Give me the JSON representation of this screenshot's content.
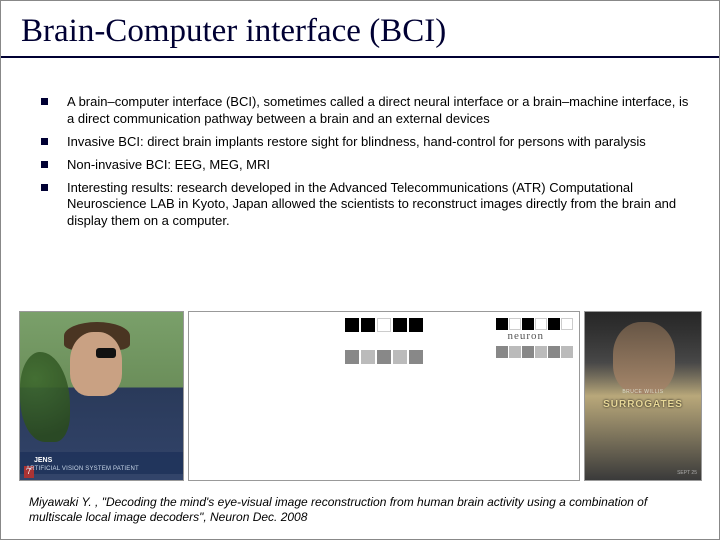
{
  "title": "Brain-Computer interface (BCI)",
  "bullets": [
    "A brain–computer interface (BCI), sometimes called a direct neural interface or a brain–machine interface, is a direct communication pathway between a brain and an external devices",
    "Invasive BCI: direct brain implants restore sight for blindness, hand-control for persons with paralysis",
    "Non-invasive BCI: EEG, MEG, MRI",
    "Interesting results: research developed in the Advanced Telecommunications (ATR) Computational Neuroscience LAB in Kyoto, Japan allowed the scientists to reconstruct images directly from the brain and display them on a computer."
  ],
  "figure": {
    "panel1": {
      "description": "artificial-vision-patient-photo",
      "name_tag": "JENS",
      "lower_caption": "ARTIFICIAL VISION SYSTEM PATIENT",
      "channel_num": "7"
    },
    "panel2": {
      "description": "stimulus-reconstruction-grid",
      "label_presented": "Presented contrast pattern",
      "label_reconstructed": "Reconstructed contrast pattern",
      "label_mean": "Mean of reconstructed",
      "word": "neuron"
    },
    "panel3": {
      "description": "surrogates-movie-poster",
      "top_line": "BRUCE WILLIS",
      "main_title": "SURROGATES",
      "date": "SEPT 25"
    }
  },
  "citation": "Miyawaki Y. , \"Decoding the mind's eye-visual image reconstruction from human brain activity using a combination of multiscale local image decoders\", Neuron Dec. 2008",
  "colors": {
    "title_color": "#000033",
    "rule_color": "#000033",
    "bullet_color": "#000033",
    "background": "#ffffff"
  },
  "typography": {
    "title_font": "Times New Roman",
    "title_size_pt": 25,
    "body_font": "Arial",
    "body_size_pt": 10,
    "citation_size_pt": 9
  }
}
